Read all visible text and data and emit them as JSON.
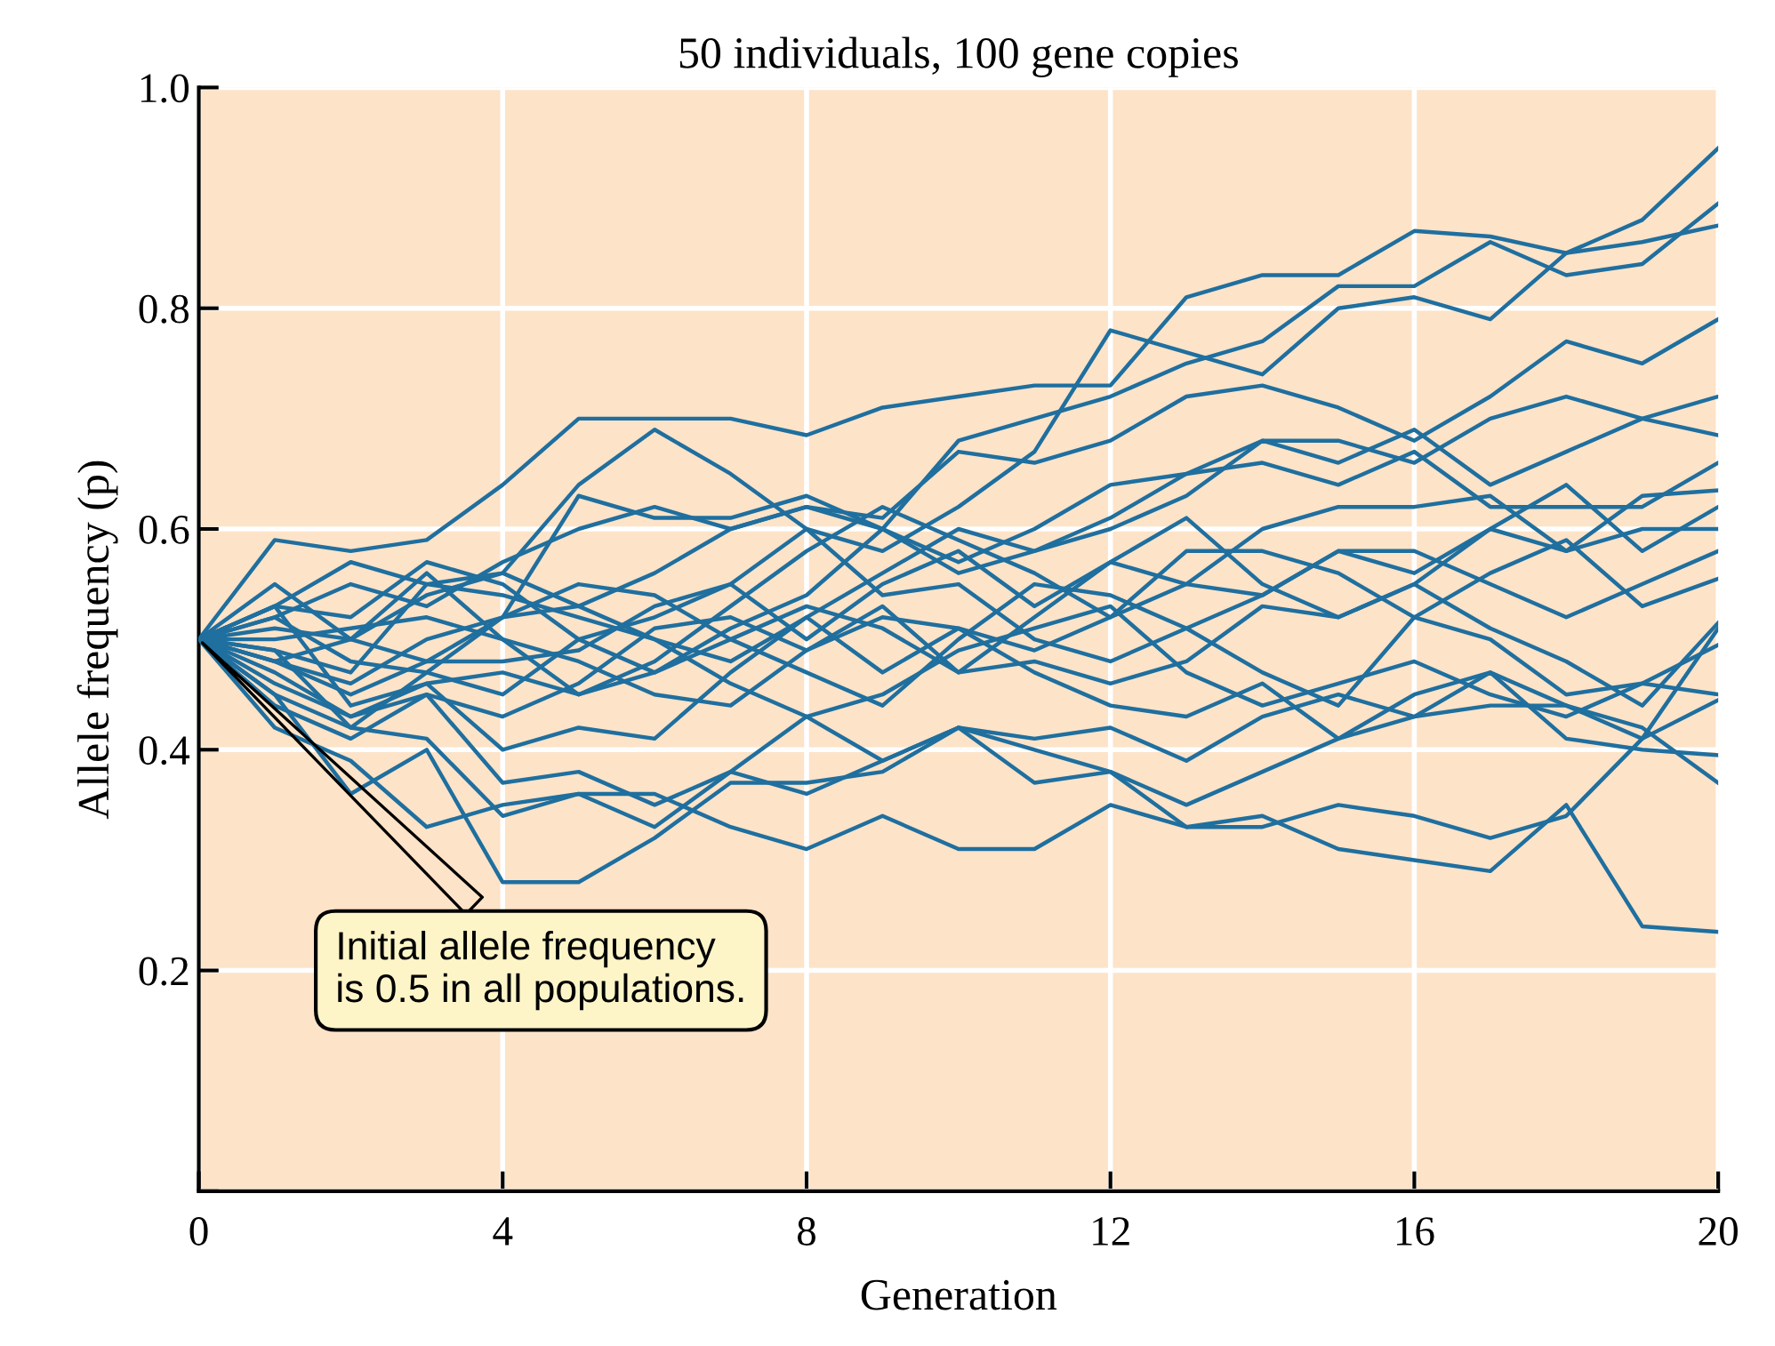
{
  "chart_data": {
    "type": "line",
    "title": "50 individuals, 100 gene copies",
    "xlabel": "Generation",
    "ylabel": "Allele frequency (p)",
    "x": [
      0,
      1,
      2,
      3,
      4,
      5,
      6,
      7,
      8,
      9,
      10,
      11,
      12,
      13,
      14,
      15,
      16,
      17,
      18,
      19,
      20
    ],
    "xlim": [
      0,
      20
    ],
    "xticks": [
      0,
      4,
      8,
      12,
      16,
      20
    ],
    "ylim": [
      0,
      1
    ],
    "yticks": [
      {
        "value": 0,
        "label": null
      },
      0.2,
      0.4,
      0.6,
      0.8,
      {
        "value": 1,
        "label": "1.0"
      }
    ],
    "grid": true,
    "marker": "none",
    "line_style": "solid",
    "annotations": [
      "Initial allele frequency\nis 0.5 in all populations."
    ],
    "series": [
      {
        "color": "#1f6f9f",
        "values": [
          0.5,
          0.59,
          0.58,
          0.59,
          0.64,
          0.7,
          0.7,
          0.7,
          0.685,
          0.71,
          0.72,
          0.73,
          0.73,
          0.81,
          0.83,
          0.83,
          0.87,
          0.865,
          0.85,
          0.88,
          0.945
        ]
      },
      {
        "color": "#1f6f9f",
        "values": [
          0.5,
          0.52,
          0.55,
          0.53,
          0.57,
          0.6,
          0.62,
          0.6,
          0.62,
          0.6,
          0.68,
          0.7,
          0.72,
          0.75,
          0.77,
          0.82,
          0.82,
          0.86,
          0.83,
          0.84,
          0.895
        ]
      },
      {
        "color": "#1f6f9f",
        "values": [
          0.5,
          0.51,
          0.5,
          0.54,
          0.56,
          0.64,
          0.69,
          0.65,
          0.6,
          0.58,
          0.62,
          0.67,
          0.78,
          0.76,
          0.74,
          0.8,
          0.81,
          0.79,
          0.85,
          0.86,
          0.875
        ]
      },
      {
        "color": "#1f6f9f",
        "values": [
          0.5,
          0.48,
          0.46,
          0.5,
          0.52,
          0.53,
          0.56,
          0.6,
          0.62,
          0.61,
          0.67,
          0.66,
          0.68,
          0.72,
          0.73,
          0.71,
          0.68,
          0.72,
          0.77,
          0.75,
          0.79
        ]
      },
      {
        "color": "#1f6f9f",
        "values": [
          0.5,
          0.53,
          0.52,
          0.57,
          0.55,
          0.5,
          0.47,
          0.51,
          0.54,
          0.6,
          0.57,
          0.6,
          0.64,
          0.65,
          0.68,
          0.68,
          0.66,
          0.7,
          0.72,
          0.7,
          0.72
        ]
      },
      {
        "color": "#1f6f9f",
        "values": [
          0.5,
          0.49,
          0.47,
          0.55,
          0.54,
          0.52,
          0.5,
          0.48,
          0.52,
          0.56,
          0.6,
          0.58,
          0.6,
          0.63,
          0.68,
          0.66,
          0.69,
          0.64,
          0.67,
          0.7,
          0.685
        ]
      },
      {
        "color": "#1f6f9f",
        "values": [
          0.5,
          0.55,
          0.5,
          0.48,
          0.52,
          0.63,
          0.61,
          0.61,
          0.63,
          0.6,
          0.56,
          0.58,
          0.61,
          0.65,
          0.66,
          0.64,
          0.67,
          0.62,
          0.62,
          0.62,
          0.66
        ]
      },
      {
        "color": "#1f6f9f",
        "values": [
          0.5,
          0.45,
          0.42,
          0.47,
          0.45,
          0.5,
          0.52,
          0.55,
          0.5,
          0.55,
          0.58,
          0.53,
          0.57,
          0.55,
          0.6,
          0.62,
          0.62,
          0.63,
          0.58,
          0.63,
          0.635
        ]
      },
      {
        "color": "#1f6f9f",
        "values": [
          0.5,
          0.53,
          0.44,
          0.46,
          0.47,
          0.45,
          0.48,
          0.53,
          0.58,
          0.62,
          0.59,
          0.56,
          0.52,
          0.55,
          0.54,
          0.58,
          0.56,
          0.6,
          0.64,
          0.58,
          0.62
        ]
      },
      {
        "color": "#1f6f9f",
        "values": [
          0.5,
          0.47,
          0.43,
          0.45,
          0.43,
          0.46,
          0.51,
          0.52,
          0.49,
          0.53,
          0.47,
          0.52,
          0.57,
          0.61,
          0.55,
          0.52,
          0.55,
          0.6,
          0.58,
          0.6,
          0.6
        ]
      },
      {
        "color": "#1f6f9f",
        "values": [
          0.5,
          0.52,
          0.48,
          0.47,
          0.52,
          0.55,
          0.54,
          0.5,
          0.47,
          0.44,
          0.5,
          0.55,
          0.54,
          0.51,
          0.54,
          0.58,
          0.58,
          0.55,
          0.52,
          0.55,
          0.58
        ]
      },
      {
        "color": "#1f6f9f",
        "values": [
          0.5,
          0.5,
          0.51,
          0.52,
          0.5,
          0.48,
          0.45,
          0.44,
          0.49,
          0.52,
          0.51,
          0.49,
          0.52,
          0.58,
          0.58,
          0.56,
          0.52,
          0.56,
          0.59,
          0.53,
          0.555
        ]
      },
      {
        "color": "#1f6f9f",
        "values": [
          0.5,
          0.48,
          0.5,
          0.56,
          0.5,
          0.45,
          0.47,
          0.5,
          0.53,
          0.51,
          0.47,
          0.48,
          0.46,
          0.48,
          0.53,
          0.52,
          0.55,
          0.51,
          0.48,
          0.44,
          0.515
        ]
      },
      {
        "color": "#1f6f9f",
        "values": [
          0.5,
          0.53,
          0.57,
          0.55,
          0.56,
          0.53,
          0.5,
          0.46,
          0.43,
          0.45,
          0.49,
          0.51,
          0.53,
          0.47,
          0.44,
          0.46,
          0.48,
          0.45,
          0.43,
          0.46,
          0.495
        ]
      },
      {
        "color": "#1f6f9f",
        "values": [
          0.5,
          0.48,
          0.45,
          0.48,
          0.48,
          0.49,
          0.53,
          0.55,
          0.6,
          0.54,
          0.55,
          0.5,
          0.48,
          0.51,
          0.47,
          0.44,
          0.52,
          0.5,
          0.45,
          0.46,
          0.45
        ]
      },
      {
        "color": "#1f6f9f",
        "values": [
          0.5,
          0.46,
          0.43,
          0.46,
          0.4,
          0.42,
          0.41,
          0.47,
          0.52,
          0.47,
          0.51,
          0.47,
          0.44,
          0.43,
          0.46,
          0.41,
          0.45,
          0.47,
          0.44,
          0.41,
          0.445
        ]
      },
      {
        "color": "#1f6f9f",
        "values": [
          0.5,
          0.44,
          0.41,
          0.45,
          0.37,
          0.38,
          0.35,
          0.38,
          0.43,
          0.39,
          0.42,
          0.41,
          0.42,
          0.39,
          0.43,
          0.45,
          0.43,
          0.47,
          0.41,
          0.4,
          0.395
        ]
      },
      {
        "color": "#1f6f9f",
        "values": [
          0.5,
          0.42,
          0.39,
          0.33,
          0.35,
          0.36,
          0.33,
          0.38,
          0.36,
          0.39,
          0.42,
          0.4,
          0.38,
          0.35,
          0.38,
          0.41,
          0.43,
          0.44,
          0.44,
          0.42,
          0.37
        ]
      },
      {
        "color": "#1f6f9f",
        "values": [
          0.5,
          0.49,
          0.42,
          0.41,
          0.34,
          0.36,
          0.36,
          0.33,
          0.31,
          0.34,
          0.31,
          0.31,
          0.35,
          0.33,
          0.33,
          0.35,
          0.34,
          0.32,
          0.34,
          0.41,
          0.51
        ]
      },
      {
        "color": "#1f6f9f",
        "values": [
          0.5,
          0.45,
          0.36,
          0.4,
          0.28,
          0.28,
          0.32,
          0.37,
          0.37,
          0.38,
          0.42,
          0.37,
          0.38,
          0.33,
          0.34,
          0.31,
          0.3,
          0.29,
          0.35,
          0.24,
          0.235
        ]
      }
    ]
  }
}
